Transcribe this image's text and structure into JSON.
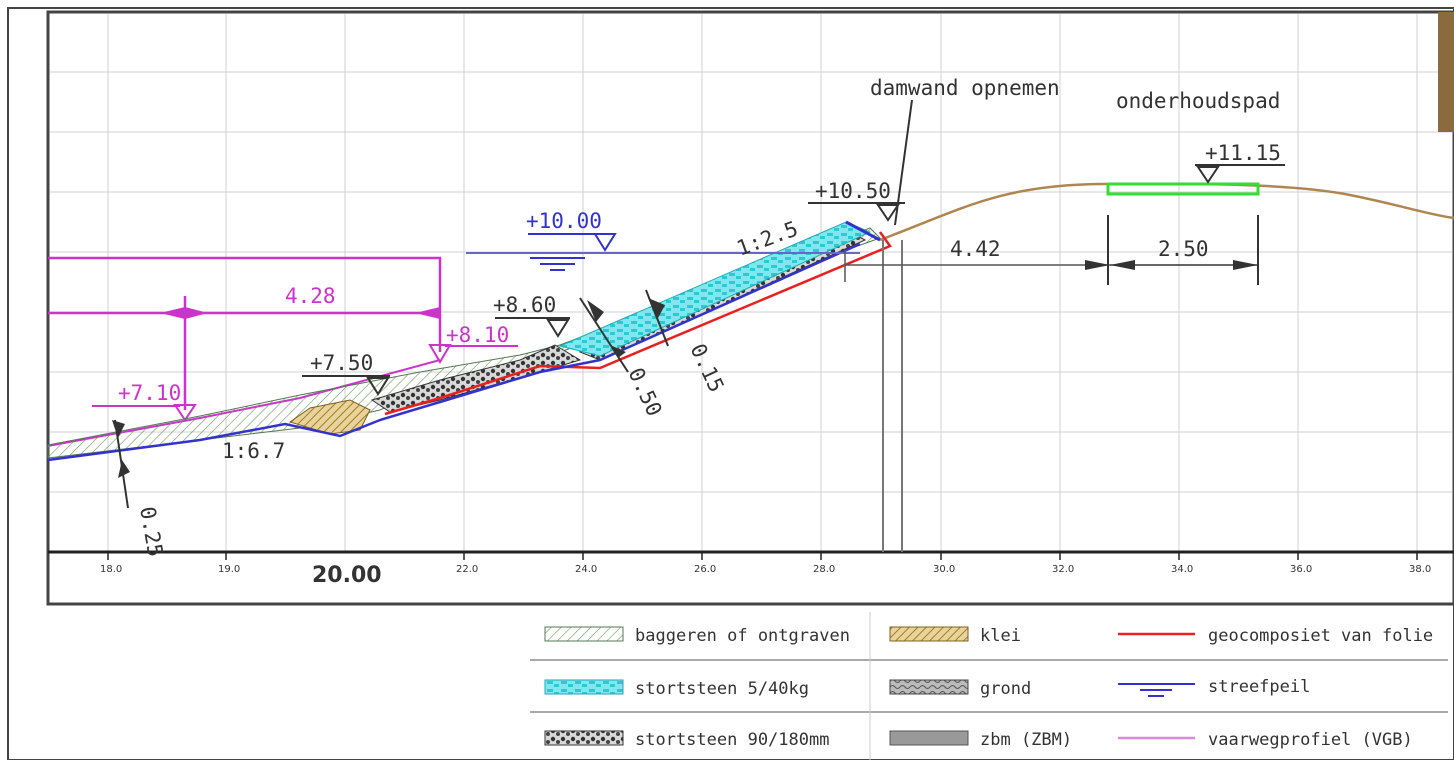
{
  "annotations": {
    "damwand": "damwand opnemen",
    "onderhoudspad": "onderhoudspad"
  },
  "levels": {
    "l1115": "+11.15",
    "l1050": "+10.50",
    "l1000": "+10.00",
    "l860": "+8.60",
    "l810": "+8.10",
    "l750": "+7.50",
    "l710": "+7.10"
  },
  "dimensions": {
    "d428": "4.28",
    "d442": "4.42",
    "d250": "2.50",
    "d050": "0.50",
    "d015": "0.15",
    "d025": "0.25"
  },
  "slopes": {
    "s125": "1:2.5",
    "s167": "1:6.7"
  },
  "axis": {
    "ticks": [
      "18.0",
      "19.0",
      "22.0",
      "24.0",
      "26.0",
      "28.0",
      "30.0",
      "32.0",
      "34.0",
      "36.0",
      "38.0"
    ],
    "main_label": "20.00"
  },
  "legend": [
    {
      "label": "baggeren of ontgraven",
      "swatch": "hatch-green"
    },
    {
      "label": "klei",
      "swatch": "hatch-ochre"
    },
    {
      "label": "geocomposiet van folie",
      "swatch": "line-red"
    },
    {
      "label": "stortsteen 5/40kg",
      "swatch": "cyan-blocks"
    },
    {
      "label": "grond",
      "swatch": "grey-pattern"
    },
    {
      "label": "streefpeil",
      "swatch": "water-blue"
    },
    {
      "label": "stortsteen 90/180mm",
      "swatch": "dark-stones"
    },
    {
      "label": "zbm (ZBM)",
      "swatch": "grey-bar"
    },
    {
      "label": "vaarwegprofiel (VGB)",
      "swatch": "line-magenta"
    }
  ],
  "colors": {
    "magenta": "#cc33cc",
    "blue": "#3333cc",
    "red": "#e82020",
    "cyan": "#33dddd",
    "soil": "#b08650",
    "path": "#33dd33"
  }
}
